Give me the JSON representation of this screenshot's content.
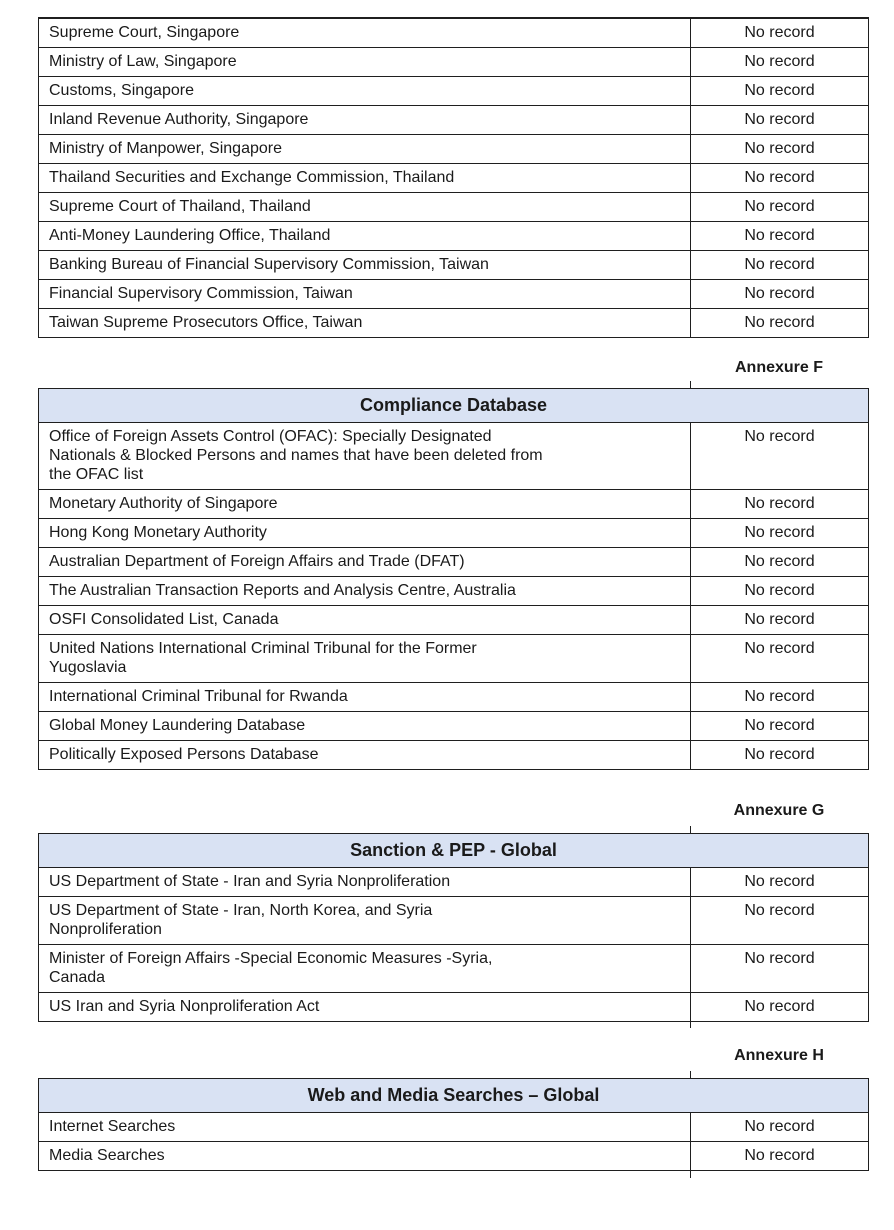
{
  "styles": {
    "header_bg": "#d9e2f3",
    "border_color": "#1f1f1f",
    "text_color": "#1a1a1a"
  },
  "tables": [
    {
      "header": null,
      "annexure": null,
      "rows": [
        {
          "label": "Supreme Court, Singapore",
          "value": "No record"
        },
        {
          "label": "Ministry of Law, Singapore",
          "value": "No record"
        },
        {
          "label": "Customs, Singapore",
          "value": "No record"
        },
        {
          "label": "Inland Revenue Authority, Singapore",
          "value": "No record"
        },
        {
          "label": "Ministry of Manpower, Singapore",
          "value": "No record"
        },
        {
          "label": "Thailand Securities and Exchange Commission, Thailand",
          "value": "No record"
        },
        {
          "label": "Supreme Court of Thailand, Thailand",
          "value": "No record"
        },
        {
          "label": "Anti-Money Laundering Office, Thailand",
          "value": "No record"
        },
        {
          "label": "Banking Bureau of Financial Supervisory Commission, Taiwan",
          "value": "No record"
        },
        {
          "label": "Financial Supervisory Commission, Taiwan",
          "value": "No record"
        },
        {
          "label": "Taiwan Supreme Prosecutors Office, Taiwan",
          "value": "No record"
        }
      ]
    },
    {
      "header": "Compliance Database",
      "annexure": "Annexure F",
      "rows": [
        {
          "label": "Office of Foreign Assets Control (OFAC): Specially Designated\nNationals & Blocked Persons and names that have been deleted from\nthe OFAC list",
          "value": "No record"
        },
        {
          "label": "Monetary Authority of Singapore",
          "value": "No record"
        },
        {
          "label": "Hong Kong Monetary Authority",
          "value": "No record"
        },
        {
          "label": "Australian Department of Foreign Affairs and Trade (DFAT)",
          "value": "No record"
        },
        {
          "label": "The Australian Transaction Reports and Analysis Centre, Australia",
          "value": "No record"
        },
        {
          "label": "OSFI Consolidated List, Canada",
          "value": "No record"
        },
        {
          "label": "United Nations International Criminal Tribunal for the Former\nYugoslavia",
          "value": "No record"
        },
        {
          "label": "International Criminal Tribunal for Rwanda",
          "value": "No record"
        },
        {
          "label": "Global Money Laundering Database",
          "value": "No record"
        },
        {
          "label": "Politically Exposed Persons Database",
          "value": "No record"
        }
      ]
    },
    {
      "header": "Sanction & PEP - Global",
      "annexure": "Annexure G",
      "rows": [
        {
          "label": "US Department of State - Iran and Syria Nonproliferation",
          "value": "No record"
        },
        {
          "label": "US Department of State - Iran, North Korea, and Syria\nNonproliferation",
          "value": "No record"
        },
        {
          "label": "Minister of Foreign Affairs -Special Economic Measures -Syria,\nCanada",
          "value": "No record"
        },
        {
          "label": "US Iran and Syria Nonproliferation Act",
          "value": "No record"
        }
      ]
    },
    {
      "header": "Web and Media Searches – Global",
      "annexure": "Annexure H",
      "rows": [
        {
          "label": "Internet Searches",
          "value": "No record"
        },
        {
          "label": "Media Searches",
          "value": "No record"
        }
      ]
    }
  ]
}
